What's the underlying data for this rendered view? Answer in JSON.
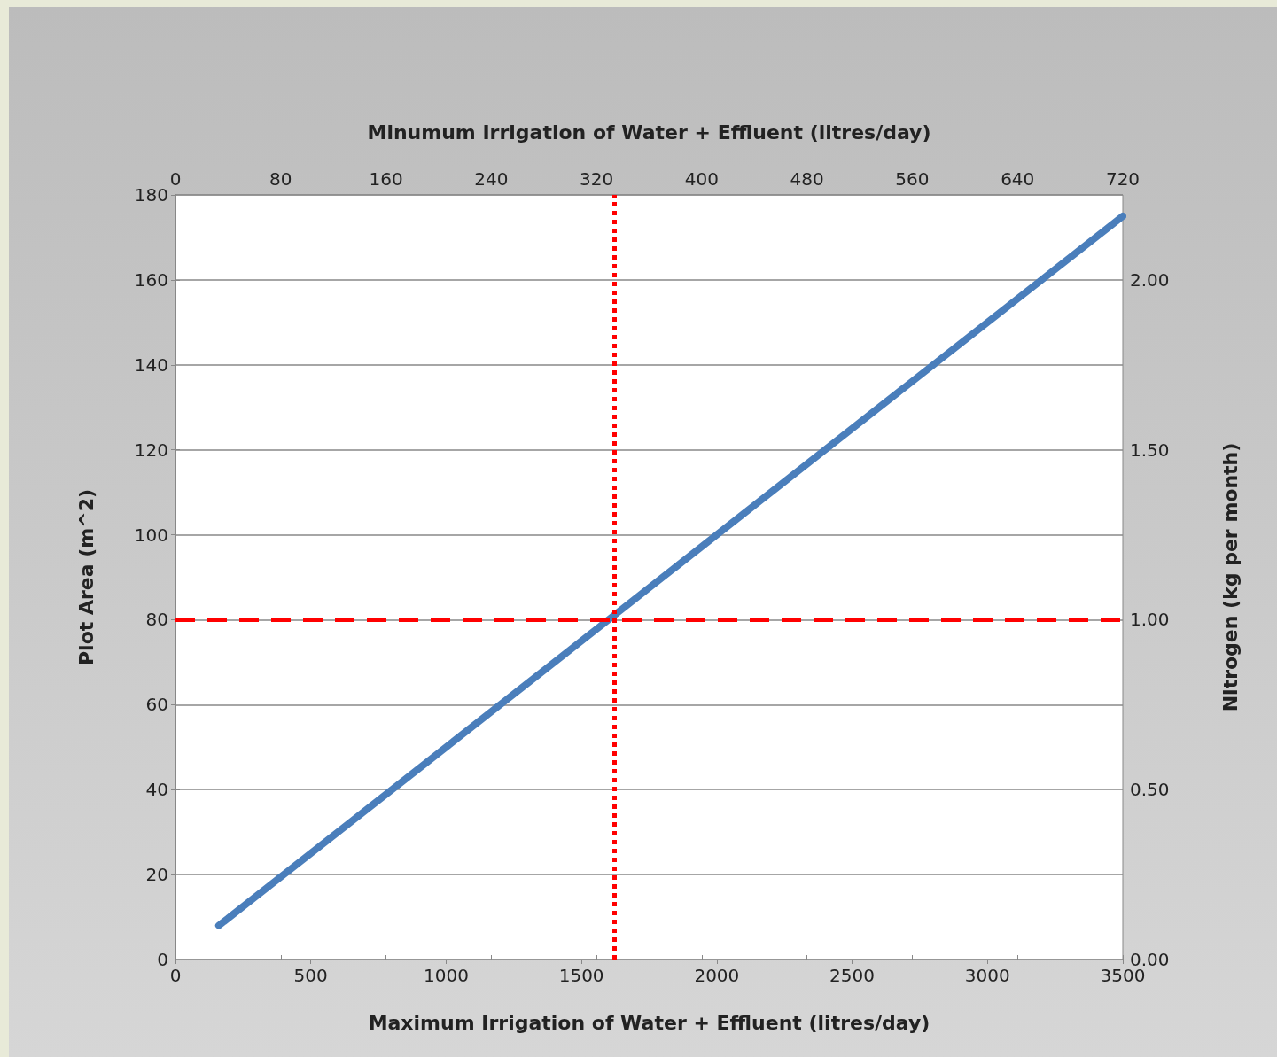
{
  "chart_data": {
    "type": "line",
    "xlabel": "Maximum Irrigation of Water + Effluent (litres/day)",
    "x2label": "Minumum Irrigation of Water + Effluent (litres/day)",
    "ylabel": "Plot Area (m^2)",
    "y2label": "Nitrogen (kg per month)",
    "series": [
      {
        "color": "#4a7ebb",
        "x": [
          160,
          3500
        ],
        "values": [
          8,
          175
        ]
      }
    ],
    "xlim": [
      0,
      3500
    ],
    "xticks": [
      0,
      500,
      1000,
      1500,
      2000,
      2500,
      3000,
      3500
    ],
    "x2lim": [
      0,
      720
    ],
    "x2ticks": [
      0,
      80,
      160,
      240,
      320,
      400,
      480,
      560,
      640,
      720
    ],
    "ylim": [
      0,
      180
    ],
    "yticks": [
      0,
      20,
      40,
      60,
      80,
      100,
      120,
      140,
      160,
      180
    ],
    "y2lim": [
      0,
      2.25
    ],
    "y2ticks": [
      {
        "value": 0,
        "label": "0.00"
      },
      {
        "value": 0.5,
        "label": "0.50"
      },
      {
        "value": 1,
        "label": "1.00"
      },
      {
        "value": 1.5,
        "label": "1.50"
      },
      {
        "value": 2,
        "label": "2.00"
      }
    ],
    "ref_lines": [
      {
        "axis": "x",
        "value": 1620,
        "color": "#ff0000",
        "line_style": "dotted"
      },
      {
        "axis": "y",
        "value": 80,
        "color": "#ff0000",
        "line_style": "dashed"
      }
    ],
    "grid": "y"
  }
}
